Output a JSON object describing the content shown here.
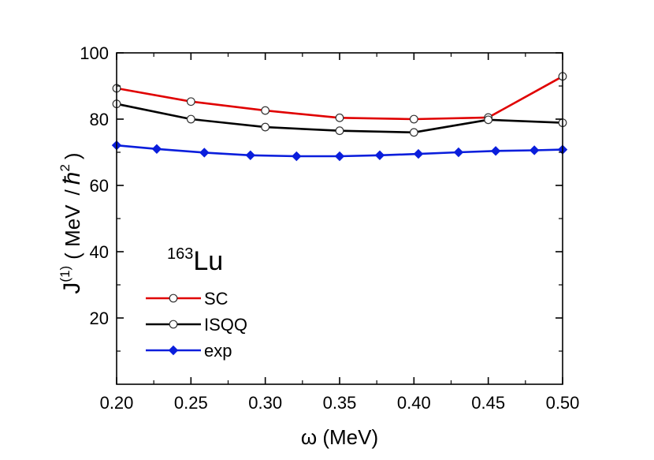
{
  "chart_data": {
    "type": "line",
    "xlabel": "ω (MeV)",
    "ylabel": {
      "prefix": "J",
      "superscript": "(1)",
      "units_open": "( MeV",
      "units_slash": "/",
      "units_hbar": "ħ",
      "units_power": "2",
      "units_close": ")"
    },
    "annotation": {
      "mass_number": "163",
      "element": "Lu"
    },
    "xlim": [
      0.2,
      0.5
    ],
    "ylim": [
      0,
      100
    ],
    "x_ticks": [
      "0.20",
      "0.25",
      "0.30",
      "0.35",
      "0.40",
      "0.45",
      "0.50"
    ],
    "y_ticks": [
      "20",
      "40",
      "60",
      "80",
      "100"
    ],
    "grid": false,
    "legend_position": "bottom-left",
    "series": [
      {
        "name": "SC",
        "color": "#e00000",
        "marker": "open-circle",
        "x": [
          0.2,
          0.25,
          0.3,
          0.35,
          0.4,
          0.45,
          0.5
        ],
        "y": [
          89.3,
          85.3,
          82.6,
          80.4,
          80.0,
          80.5,
          92.9
        ]
      },
      {
        "name": "ISQQ",
        "color": "#000000",
        "marker": "open-circle",
        "x": [
          0.2,
          0.25,
          0.3,
          0.35,
          0.4,
          0.45,
          0.5
        ],
        "y": [
          84.6,
          80.0,
          77.6,
          76.5,
          76.0,
          79.8,
          78.9
        ]
      },
      {
        "name": "exp",
        "color": "#0a1edc",
        "marker": "filled-diamond",
        "x": [
          0.2,
          0.227,
          0.259,
          0.29,
          0.321,
          0.35,
          0.377,
          0.403,
          0.43,
          0.455,
          0.481,
          0.5
        ],
        "y": [
          72.1,
          71.0,
          69.9,
          69.1,
          68.8,
          68.8,
          69.1,
          69.5,
          70.0,
          70.4,
          70.6,
          70.8
        ]
      }
    ]
  }
}
